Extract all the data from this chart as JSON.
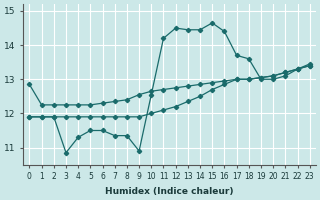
{
  "xlabel": "Humidex (Indice chaleur)",
  "background_color": "#cce8e8",
  "grid_color": "#ffffff",
  "line_color": "#1a6b6b",
  "line1_x": [
    0,
    1,
    2,
    3,
    4,
    5,
    6,
    7,
    8,
    9,
    10,
    11,
    12,
    13,
    14,
    15,
    16,
    17,
    18,
    19,
    20,
    21,
    22,
    23
  ],
  "line1_y": [
    12.85,
    12.25,
    12.25,
    12.25,
    12.25,
    12.25,
    12.3,
    12.35,
    12.4,
    12.55,
    12.65,
    12.7,
    12.75,
    12.8,
    12.85,
    12.9,
    12.95,
    13.0,
    13.0,
    13.05,
    13.1,
    13.2,
    13.3,
    13.4
  ],
  "line2_x": [
    0,
    1,
    2,
    3,
    4,
    5,
    6,
    7,
    8,
    9,
    10,
    11,
    12,
    13,
    14,
    15,
    16,
    17,
    18,
    19,
    20,
    21,
    22,
    23
  ],
  "line2_y": [
    11.9,
    11.9,
    11.9,
    10.85,
    11.3,
    11.5,
    11.5,
    11.35,
    11.35,
    10.9,
    12.55,
    14.2,
    14.5,
    14.45,
    14.45,
    14.65,
    14.4,
    13.7,
    13.6,
    13.0,
    13.0,
    13.1,
    13.3,
    13.45
  ],
  "line3_x": [
    0,
    1,
    2,
    3,
    4,
    5,
    6,
    7,
    8,
    9,
    10,
    11,
    12,
    13,
    14,
    15,
    16,
    17,
    18,
    19,
    20,
    21,
    22,
    23
  ],
  "line3_y": [
    11.9,
    11.9,
    11.9,
    11.9,
    11.9,
    11.9,
    11.9,
    11.9,
    11.9,
    11.9,
    12.0,
    12.1,
    12.2,
    12.35,
    12.5,
    12.7,
    12.85,
    13.0,
    13.0,
    13.05,
    13.1,
    13.2,
    13.3,
    13.4
  ],
  "ylim": [
    10.5,
    15.2
  ],
  "xlim": [
    -0.5,
    23.5
  ],
  "yticks": [
    11,
    12,
    13,
    14,
    15
  ],
  "xtick_labels": [
    "0",
    "1",
    "2",
    "3",
    "4",
    "5",
    "6",
    "7",
    "8",
    "9",
    "10",
    "11",
    "12",
    "13",
    "14",
    "15",
    "16",
    "17",
    "18",
    "19",
    "20",
    "21",
    "22",
    "23"
  ]
}
